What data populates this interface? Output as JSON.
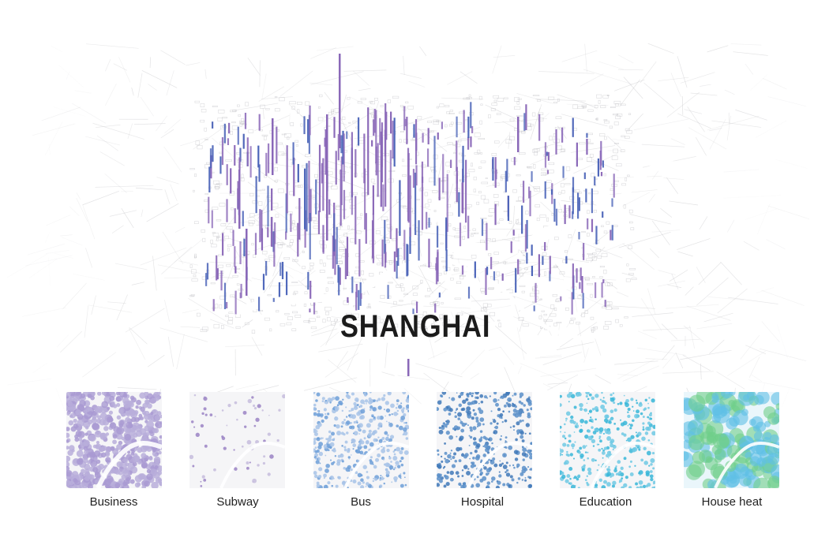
{
  "map": {
    "title": "SHANGHAI",
    "colors": {
      "background": "#ffffff",
      "road_network": "#c9c9cc",
      "river": "#ffffff",
      "bar_purple": "#8a68b8",
      "bar_blue": "#4a63b8"
    }
  },
  "layers": [
    {
      "id": "business",
      "label": "Business",
      "colors": [
        "#b9aedb",
        "#a99ad2"
      ]
    },
    {
      "id": "subway",
      "label": "Subway",
      "colors": [
        "#c6bcdd",
        "#9a82c4"
      ]
    },
    {
      "id": "bus",
      "label": "Bus",
      "colors": [
        "#a7c3e8",
        "#6d9fd8"
      ]
    },
    {
      "id": "hospital",
      "label": "Hospital",
      "colors": [
        "#5b8fc9",
        "#3f78b8"
      ]
    },
    {
      "id": "education",
      "label": "Education",
      "colors": [
        "#6ec9e4",
        "#37b6d8"
      ]
    },
    {
      "id": "house",
      "label": "House heat",
      "colors": [
        "#5fc0e6",
        "#6fcf8a"
      ]
    }
  ]
}
